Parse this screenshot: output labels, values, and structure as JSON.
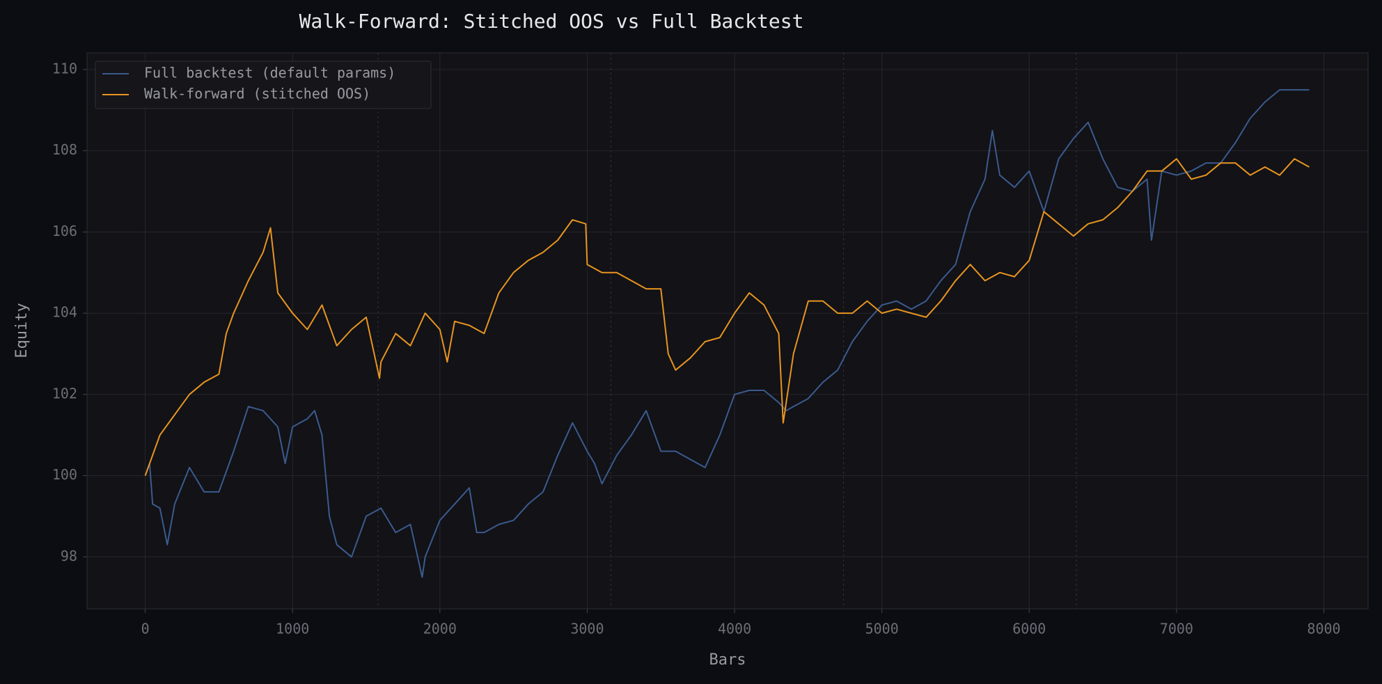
{
  "chart_data": {
    "type": "line",
    "title": "Walk-Forward: Stitched OOS vs Full Backtest",
    "xlabel": "Bars",
    "ylabel": "Equity",
    "xlim": [
      -395,
      8300
    ],
    "ylim": [
      96.72,
      110.41
    ],
    "xticks": [
      0,
      1000,
      2000,
      3000,
      4000,
      5000,
      6000,
      7000,
      8000
    ],
    "yticks": [
      98,
      100,
      102,
      104,
      106,
      108,
      110
    ],
    "grid": true,
    "legend": "upper left",
    "vlines": [
      1580,
      3160,
      4740,
      6320
    ],
    "series": [
      {
        "name": "Full backtest (default params)",
        "color": "#3b5b8e",
        "x": [
          0,
          30,
          50,
          100,
          150,
          200,
          300,
          400,
          500,
          600,
          700,
          800,
          900,
          950,
          1000,
          1100,
          1150,
          1200,
          1250,
          1300,
          1400,
          1500,
          1600,
          1700,
          1800,
          1880,
          1900,
          2000,
          2100,
          2200,
          2250,
          2300,
          2400,
          2500,
          2600,
          2700,
          2800,
          2900,
          3000,
          3050,
          3100,
          3200,
          3300,
          3400,
          3500,
          3600,
          3700,
          3800,
          3900,
          4000,
          4100,
          4200,
          4300,
          4350,
          4400,
          4500,
          4600,
          4700,
          4800,
          4900,
          5000,
          5100,
          5200,
          5300,
          5400,
          5500,
          5600,
          5700,
          5750,
          5800,
          5900,
          6000,
          6100,
          6200,
          6300,
          6400,
          6500,
          6600,
          6700,
          6800,
          6830,
          6900,
          7000,
          7100,
          7200,
          7300,
          7400,
          7500,
          7600,
          7700,
          7800,
          7900
        ],
        "values": [
          100,
          100.3,
          99.3,
          99.2,
          98.3,
          99.3,
          100.2,
          99.6,
          99.6,
          100.6,
          101.7,
          101.6,
          101.2,
          100.3,
          101.2,
          101.4,
          101.6,
          101,
          99,
          98.3,
          98,
          99,
          99.2,
          98.6,
          98.8,
          97.5,
          98,
          98.9,
          99.3,
          99.7,
          98.6,
          98.6,
          98.8,
          98.9,
          99.3,
          99.6,
          100.5,
          101.3,
          100.6,
          100.3,
          99.8,
          100.5,
          101,
          101.6,
          100.6,
          100.6,
          100.4,
          100.2,
          101,
          102,
          102.1,
          102.1,
          101.8,
          101.6,
          101.7,
          101.9,
          102.3,
          102.6,
          103.3,
          103.8,
          104.2,
          104.3,
          104.1,
          104.3,
          104.8,
          105.2,
          106.5,
          107.3,
          108.5,
          107.4,
          107.1,
          107.5,
          106.5,
          107.8,
          108.3,
          108.7,
          107.8,
          107.1,
          107,
          107.3,
          105.8,
          107.5,
          107.4,
          107.5,
          107.7,
          107.7,
          108.2,
          108.8,
          109.2,
          109.5,
          109.5,
          109.5
        ]
      },
      {
        "name": "Walk-forward (stitched OOS)",
        "color": "#e8951f",
        "x": [
          0,
          100,
          200,
          300,
          400,
          500,
          550,
          600,
          700,
          800,
          850,
          900,
          1000,
          1100,
          1200,
          1300,
          1400,
          1500,
          1590,
          1600,
          1700,
          1800,
          1900,
          2000,
          2050,
          2100,
          2200,
          2300,
          2400,
          2500,
          2600,
          2700,
          2800,
          2900,
          2990,
          3000,
          3100,
          3200,
          3300,
          3400,
          3500,
          3550,
          3600,
          3700,
          3800,
          3900,
          4000,
          4100,
          4200,
          4300,
          4330,
          4400,
          4500,
          4600,
          4700,
          4800,
          4900,
          5000,
          5100,
          5200,
          5300,
          5400,
          5500,
          5600,
          5700,
          5800,
          5900,
          6000,
          6100,
          6200,
          6300,
          6400,
          6500,
          6600,
          6700,
          6800,
          6900,
          7000,
          7100,
          7200,
          7300,
          7400,
          7500,
          7600,
          7700,
          7800,
          7900
        ],
        "values": [
          100,
          101,
          101.5,
          102,
          102.3,
          102.5,
          103.5,
          104,
          104.8,
          105.5,
          106.1,
          104.5,
          104,
          103.6,
          104.2,
          103.2,
          103.6,
          103.9,
          102.4,
          102.8,
          103.5,
          103.2,
          104,
          103.6,
          102.8,
          103.8,
          103.7,
          103.5,
          104.5,
          105,
          105.3,
          105.5,
          105.8,
          106.3,
          106.2,
          105.2,
          105,
          105,
          104.8,
          104.6,
          104.6,
          103,
          102.6,
          102.9,
          103.3,
          103.4,
          104,
          104.5,
          104.2,
          103.5,
          101.3,
          103,
          104.3,
          104.3,
          104,
          104,
          104.3,
          104,
          104.1,
          104,
          103.9,
          104.3,
          104.8,
          105.2,
          104.8,
          105,
          104.9,
          105.3,
          106.5,
          106.2,
          105.9,
          106.2,
          106.3,
          106.6,
          107,
          107.5,
          107.5,
          107.8,
          107.3,
          107.4,
          107.7,
          107.7,
          107.4,
          107.6,
          107.4,
          107.8,
          107.6
        ]
      }
    ]
  }
}
